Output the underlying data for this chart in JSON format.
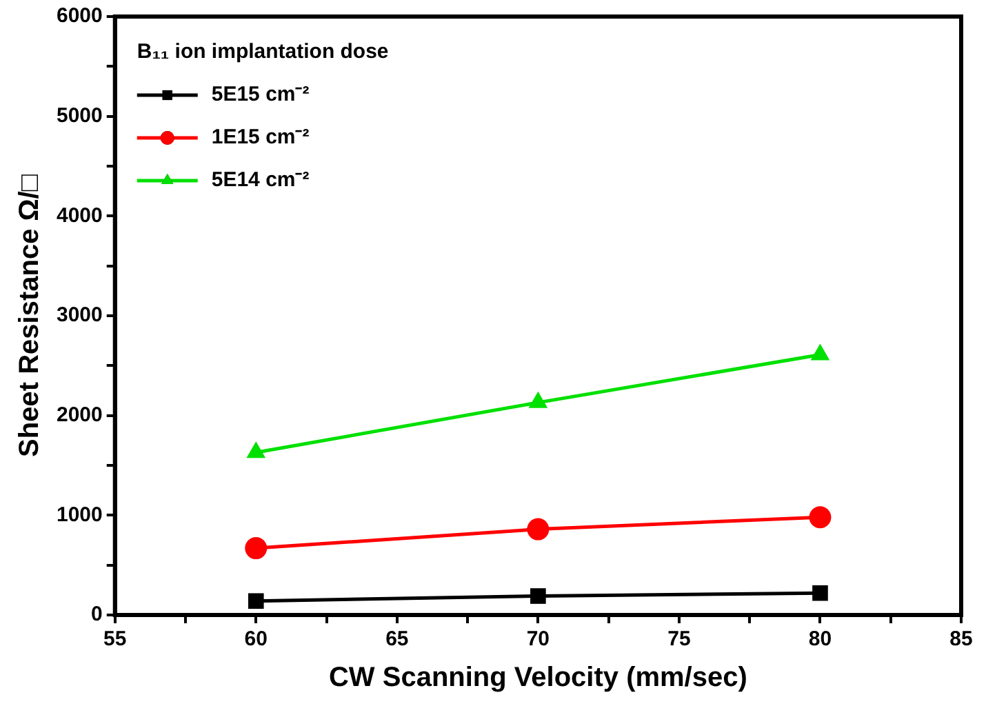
{
  "chart_data": {
    "type": "line",
    "xlabel": "CW Scanning Velocity (mm/sec)",
    "ylabel": "Sheet Resistance Ω/□",
    "legend_title": "B₁₁ ion implantation dose",
    "legend": "top left",
    "x": [
      60,
      70,
      80
    ],
    "series": [
      {
        "name": "5E15 cm⁻²",
        "color": "#000000",
        "marker": "square",
        "values": [
          140,
          190,
          220
        ]
      },
      {
        "name": "1E15 cm⁻²",
        "color": "#ff0000",
        "marker": "circle",
        "values": [
          670,
          860,
          980
        ]
      },
      {
        "name": "5E14 cm⁻²",
        "color": "#00e000",
        "marker": "triangle",
        "values": [
          1630,
          2130,
          2610
        ]
      }
    ],
    "xlim": [
      55,
      85
    ],
    "xticks": [
      55,
      {
        "value": 57.5,
        "label": null
      },
      60,
      {
        "value": 62.5,
        "label": null
      },
      65,
      {
        "value": 67.5,
        "label": null
      },
      70,
      {
        "value": 72.5,
        "label": null
      },
      75,
      {
        "value": 77.5,
        "label": null
      },
      80,
      {
        "value": 82.5,
        "label": null
      },
      85
    ],
    "ylim": [
      0,
      6000
    ],
    "yticks": [
      0,
      {
        "value": 500,
        "label": null
      },
      1000,
      {
        "value": 1500,
        "label": null
      },
      2000,
      {
        "value": 2500,
        "label": null
      },
      3000,
      {
        "value": 3500,
        "label": null
      },
      4000,
      {
        "value": 4500,
        "label": null
      },
      5000,
      {
        "value": 5500,
        "label": null
      },
      6000
    ]
  }
}
